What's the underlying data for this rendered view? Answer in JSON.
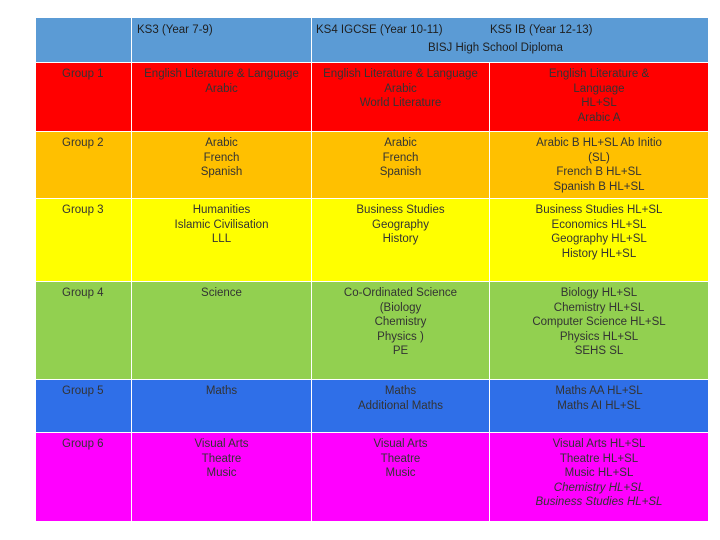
{
  "header": {
    "ks3": "KS3 (Year 7-9)",
    "ks4": "KS4 IGCSE (Year 10-11)",
    "ks5": "KS5 IB (Year 12-13)",
    "diploma": "BISJ High School Diploma"
  },
  "colors": {
    "header": "#5b9bd5",
    "group1": "#ff0000",
    "group2": "#ffc000",
    "group3": "#ffff00",
    "group4": "#92d050",
    "group5": "#2f6fe8",
    "group6": "#ff00ff"
  },
  "rows": [
    {
      "group": "Group 1",
      "ks3": "English Literature & Language\nArabic",
      "ks4": "English Literature & Language\nArabic\nWorld Literature",
      "ks5": "English Literature &\nLanguage\nHL+SL\nArabic A"
    },
    {
      "group": "Group 2",
      "ks3": "Arabic\nFrench\nSpanish",
      "ks4": "Arabic\nFrench\nSpanish",
      "ks5": "Arabic B HL+SL Ab Initio\n(SL)\nFrench B HL+SL\nSpanish B HL+SL"
    },
    {
      "group": "Group 3",
      "ks3": "Humanities\nIslamic Civilisation\nLLL",
      "ks4": "Business Studies\nGeography\nHistory",
      "ks5": "Business Studies HL+SL\nEconomics HL+SL\nGeography HL+SL\nHistory HL+SL"
    },
    {
      "group": "Group 4",
      "ks3": "Science",
      "ks4": "Co-Ordinated Science\n(Biology\nChemistry\nPhysics )\nPE",
      "ks5": "Biology HL+SL\nChemistry HL+SL\nComputer Science HL+SL\nPhysics HL+SL\nSEHS SL"
    },
    {
      "group": "Group 5",
      "ks3": "Maths",
      "ks4": "Maths\nAdditional Maths",
      "ks5": "Maths AA HL+SL\nMaths AI HL+SL"
    },
    {
      "group": "Group 6",
      "ks3": "Visual Arts\nTheatre\nMusic",
      "ks4": "Visual Arts\nTheatre\nMusic",
      "ks5": "Visual Arts HL+SL\nTheatre HL+SL\nMusic HL+SL",
      "ks5_italic": "Chemistry HL+SL\nBusiness Studies HL+SL"
    }
  ]
}
